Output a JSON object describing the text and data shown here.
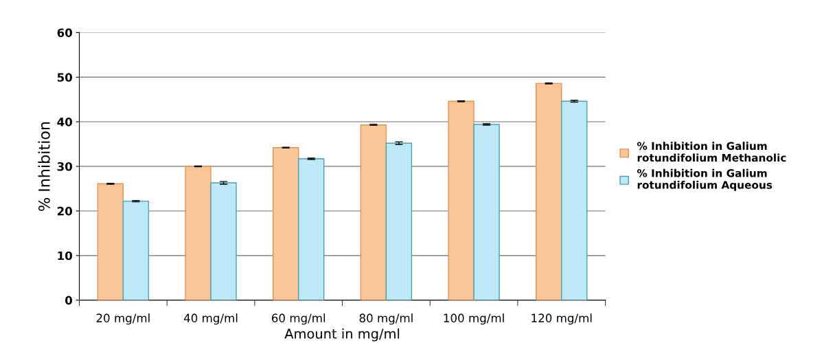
{
  "chart_data": {
    "type": "bar",
    "xlabel": "Amount in mg/ml",
    "ylabel": "% Inhibition",
    "categories": [
      "20 mg/ml",
      "40 mg/ml",
      "60 mg/ml",
      "80 mg/ml",
      "100 mg/ml",
      "120 mg/ml"
    ],
    "series": [
      {
        "name": "% Inhibition in Galium rotundifolium Methanolic",
        "color": "#fbc597",
        "values": [
          26.1,
          30.0,
          34.2,
          39.3,
          44.6,
          48.6
        ],
        "errors": [
          0.1,
          0.1,
          0.1,
          0.1,
          0.1,
          0.1
        ]
      },
      {
        "name": "% Inhibition in Galium rotundifolium Aqueous",
        "color": "#bde9f6",
        "values": [
          22.2,
          26.3,
          31.7,
          35.2,
          39.4,
          44.6
        ],
        "errors": [
          0.15,
          0.3,
          0.15,
          0.3,
          0.15,
          0.2
        ]
      }
    ],
    "ylim": [
      0,
      60
    ],
    "yticks": [
      0,
      10,
      20,
      30,
      40,
      50,
      60
    ],
    "grid": "y",
    "legend": "right"
  }
}
